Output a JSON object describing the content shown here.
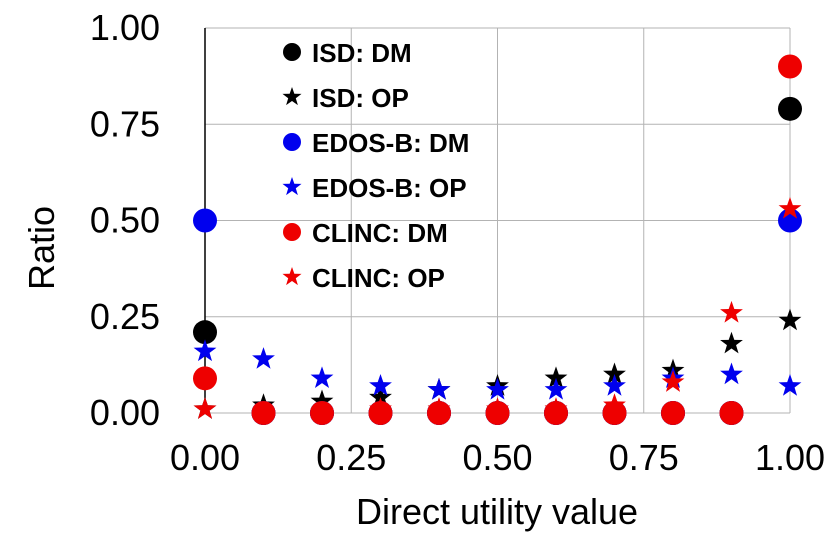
{
  "chart_data": {
    "type": "scatter",
    "title": "",
    "xlabel": "Direct utility value",
    "ylabel": "Ratio",
    "xlim": [
      0,
      1
    ],
    "ylim": [
      0,
      1
    ],
    "grid": true,
    "legend_position": "top-left",
    "x_tick_labels": [
      "0.00",
      "0.25",
      "0.50",
      "0.75",
      "1.00"
    ],
    "y_tick_labels": [
      "0.00",
      "0.25",
      "0.50",
      "0.75",
      "1.00"
    ],
    "x_ticks": [
      0,
      0.25,
      0.5,
      0.75,
      1.0
    ],
    "y_ticks": [
      0,
      0.25,
      0.5,
      0.75,
      1.0
    ],
    "x": [
      0.0,
      0.1,
      0.2,
      0.3,
      0.4,
      0.5,
      0.6,
      0.7,
      0.8,
      0.9,
      1.0
    ],
    "series": [
      {
        "name": "ISD: DM",
        "marker": "circle",
        "color": "#000000",
        "values": [
          0.21,
          0.0,
          0.0,
          0.0,
          0.0,
          0.0,
          0.0,
          0.0,
          0.0,
          0.0,
          0.79
        ]
      },
      {
        "name": "ISD: OP",
        "marker": "star",
        "color": "#000000",
        "values": [
          0.01,
          0.02,
          0.03,
          0.04,
          0.06,
          0.07,
          0.09,
          0.1,
          0.11,
          0.18,
          0.24
        ]
      },
      {
        "name": "EDOS-B: DM",
        "marker": "circle",
        "color": "#0000ee",
        "values": [
          0.5,
          0.0,
          0.0,
          0.0,
          0.0,
          0.0,
          0.0,
          0.0,
          0.0,
          0.0,
          0.5
        ]
      },
      {
        "name": "EDOS-B: OP",
        "marker": "star",
        "color": "#0000ee",
        "values": [
          0.16,
          0.14,
          0.09,
          0.07,
          0.06,
          0.06,
          0.06,
          0.07,
          0.09,
          0.1,
          0.07
        ]
      },
      {
        "name": "CLINC: DM",
        "marker": "circle",
        "color": "#ee0000",
        "values": [
          0.09,
          0.0,
          0.0,
          0.0,
          0.0,
          0.0,
          0.0,
          0.0,
          0.0,
          0.0,
          0.9
        ]
      },
      {
        "name": "CLINC: OP",
        "marker": "star",
        "color": "#ee0000",
        "values": [
          0.01,
          0.0,
          0.0,
          0.01,
          0.01,
          0.01,
          0.01,
          0.02,
          0.08,
          0.26,
          0.53
        ]
      }
    ]
  }
}
